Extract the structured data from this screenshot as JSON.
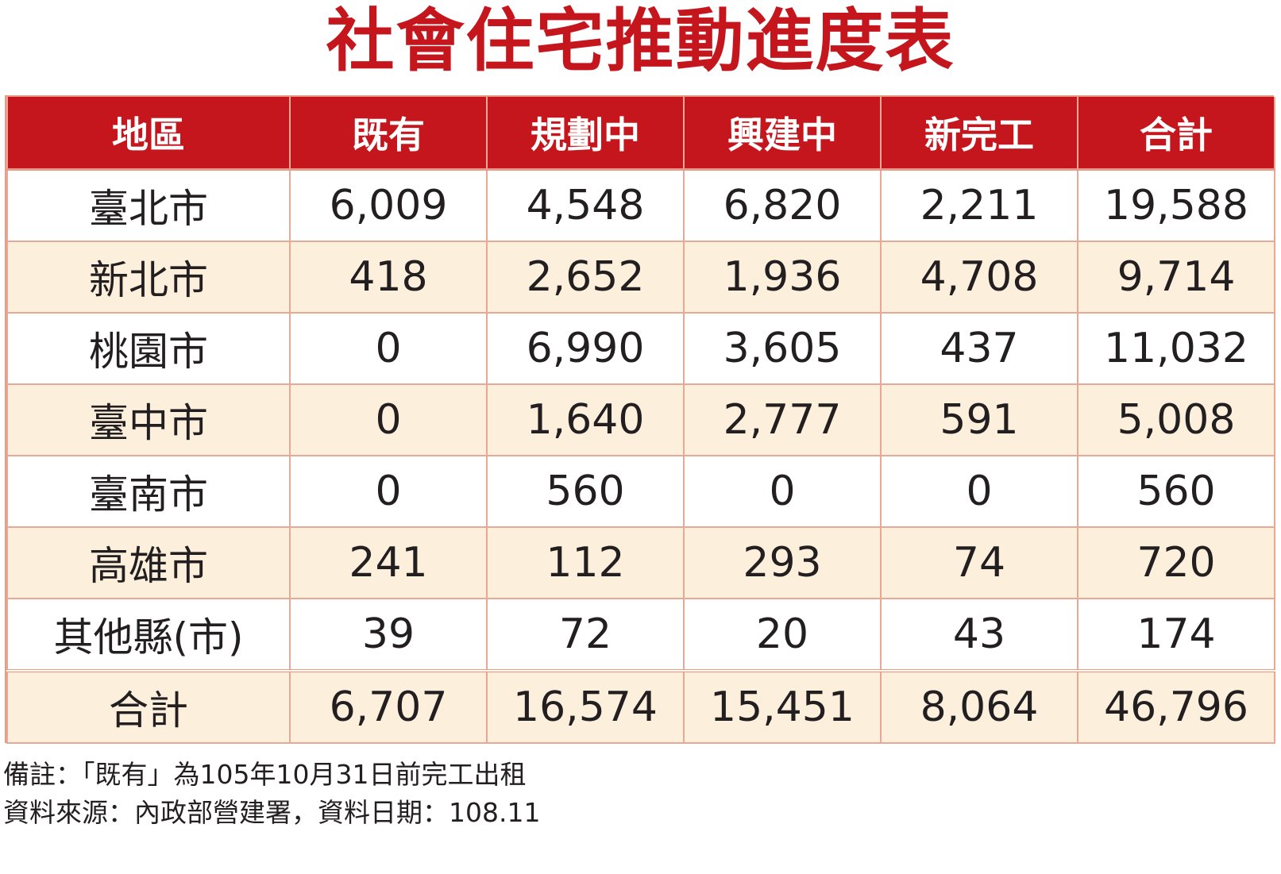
{
  "title": "社會住宅推動進度表",
  "chart_data": {
    "type": "table",
    "title": "社會住宅推動進度表",
    "columns": [
      "地區",
      "既有",
      "規劃中",
      "興建中",
      "新完工",
      "合計"
    ],
    "rows": [
      [
        "臺北市",
        "6,009",
        "4,548",
        "6,820",
        "2,211",
        "19,588"
      ],
      [
        "新北市",
        "418",
        "2,652",
        "1,936",
        "4,708",
        "9,714"
      ],
      [
        "桃園市",
        "0",
        "6,990",
        "3,605",
        "437",
        "11,032"
      ],
      [
        "臺中市",
        "0",
        "1,640",
        "2,777",
        "591",
        "5,008"
      ],
      [
        "臺南市",
        "0",
        "560",
        "0",
        "0",
        "560"
      ],
      [
        "高雄市",
        "241",
        "112",
        "293",
        "74",
        "720"
      ],
      [
        "其他縣(市)",
        "39",
        "72",
        "20",
        "43",
        "174"
      ]
    ],
    "total_row": [
      "合計",
      "6,707",
      "16,574",
      "15,451",
      "8,064",
      "46,796"
    ]
  },
  "notes": [
    "備註：「既有」為105年10月31日前完工出租",
    "資料來源：內政部營建署，資料日期：108.11"
  ],
  "colors": {
    "title": "#c4161c",
    "header_bg": "#c4161c",
    "header_text": "#ffffff",
    "stripe": "#fcefdc",
    "grid": "#e8a896"
  }
}
